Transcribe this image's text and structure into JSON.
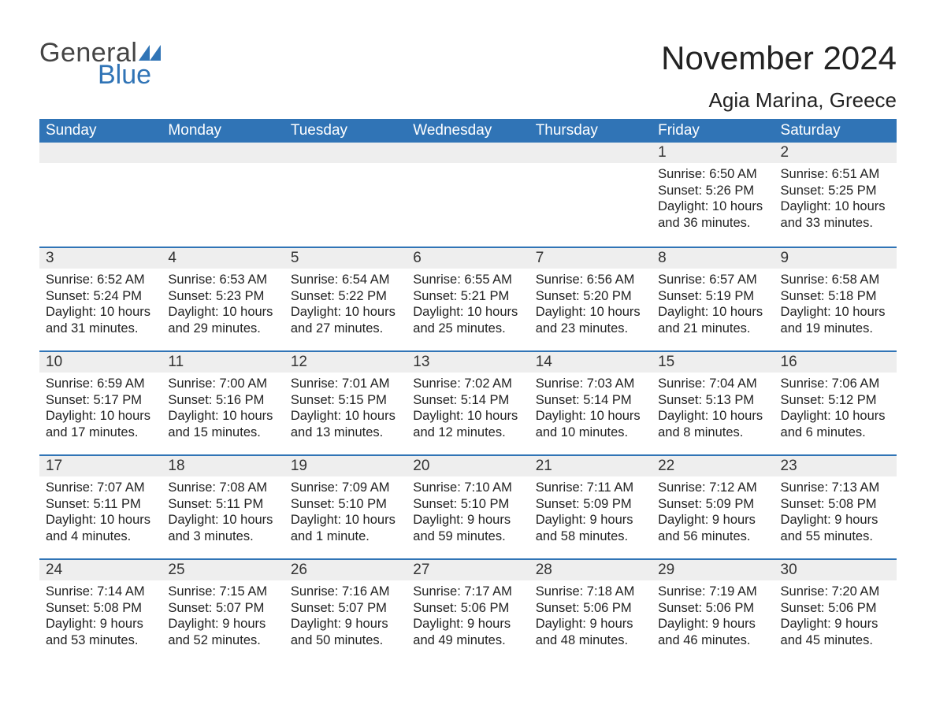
{
  "logo": {
    "text1": "General",
    "text2": "Blue",
    "mark_color": "#3074b6",
    "text1_color": "#444444"
  },
  "title": "November 2024",
  "location": "Agia Marina, Greece",
  "colors": {
    "header_bg": "#3074b6",
    "header_text": "#ffffff",
    "daybar_bg": "#eeeeee",
    "daybar_border": "#3074b6",
    "body_text": "#222222",
    "page_bg": "#ffffff"
  },
  "fonts": {
    "title_size": 42,
    "location_size": 26,
    "th_size": 19,
    "cell_size": 16.5
  },
  "weekdays": [
    "Sunday",
    "Monday",
    "Tuesday",
    "Wednesday",
    "Thursday",
    "Friday",
    "Saturday"
  ],
  "weeks": [
    [
      null,
      null,
      null,
      null,
      null,
      {
        "n": "1",
        "sunrise": "6:50 AM",
        "sunset": "5:26 PM",
        "daylight": "10 hours and 36 minutes."
      },
      {
        "n": "2",
        "sunrise": "6:51 AM",
        "sunset": "5:25 PM",
        "daylight": "10 hours and 33 minutes."
      }
    ],
    [
      {
        "n": "3",
        "sunrise": "6:52 AM",
        "sunset": "5:24 PM",
        "daylight": "10 hours and 31 minutes."
      },
      {
        "n": "4",
        "sunrise": "6:53 AM",
        "sunset": "5:23 PM",
        "daylight": "10 hours and 29 minutes."
      },
      {
        "n": "5",
        "sunrise": "6:54 AM",
        "sunset": "5:22 PM",
        "daylight": "10 hours and 27 minutes."
      },
      {
        "n": "6",
        "sunrise": "6:55 AM",
        "sunset": "5:21 PM",
        "daylight": "10 hours and 25 minutes."
      },
      {
        "n": "7",
        "sunrise": "6:56 AM",
        "sunset": "5:20 PM",
        "daylight": "10 hours and 23 minutes."
      },
      {
        "n": "8",
        "sunrise": "6:57 AM",
        "sunset": "5:19 PM",
        "daylight": "10 hours and 21 minutes."
      },
      {
        "n": "9",
        "sunrise": "6:58 AM",
        "sunset": "5:18 PM",
        "daylight": "10 hours and 19 minutes."
      }
    ],
    [
      {
        "n": "10",
        "sunrise": "6:59 AM",
        "sunset": "5:17 PM",
        "daylight": "10 hours and 17 minutes."
      },
      {
        "n": "11",
        "sunrise": "7:00 AM",
        "sunset": "5:16 PM",
        "daylight": "10 hours and 15 minutes."
      },
      {
        "n": "12",
        "sunrise": "7:01 AM",
        "sunset": "5:15 PM",
        "daylight": "10 hours and 13 minutes."
      },
      {
        "n": "13",
        "sunrise": "7:02 AM",
        "sunset": "5:14 PM",
        "daylight": "10 hours and 12 minutes."
      },
      {
        "n": "14",
        "sunrise": "7:03 AM",
        "sunset": "5:14 PM",
        "daylight": "10 hours and 10 minutes."
      },
      {
        "n": "15",
        "sunrise": "7:04 AM",
        "sunset": "5:13 PM",
        "daylight": "10 hours and 8 minutes."
      },
      {
        "n": "16",
        "sunrise": "7:06 AM",
        "sunset": "5:12 PM",
        "daylight": "10 hours and 6 minutes."
      }
    ],
    [
      {
        "n": "17",
        "sunrise": "7:07 AM",
        "sunset": "5:11 PM",
        "daylight": "10 hours and 4 minutes."
      },
      {
        "n": "18",
        "sunrise": "7:08 AM",
        "sunset": "5:11 PM",
        "daylight": "10 hours and 3 minutes."
      },
      {
        "n": "19",
        "sunrise": "7:09 AM",
        "sunset": "5:10 PM",
        "daylight": "10 hours and 1 minute."
      },
      {
        "n": "20",
        "sunrise": "7:10 AM",
        "sunset": "5:10 PM",
        "daylight": "9 hours and 59 minutes."
      },
      {
        "n": "21",
        "sunrise": "7:11 AM",
        "sunset": "5:09 PM",
        "daylight": "9 hours and 58 minutes."
      },
      {
        "n": "22",
        "sunrise": "7:12 AM",
        "sunset": "5:09 PM",
        "daylight": "9 hours and 56 minutes."
      },
      {
        "n": "23",
        "sunrise": "7:13 AM",
        "sunset": "5:08 PM",
        "daylight": "9 hours and 55 minutes."
      }
    ],
    [
      {
        "n": "24",
        "sunrise": "7:14 AM",
        "sunset": "5:08 PM",
        "daylight": "9 hours and 53 minutes."
      },
      {
        "n": "25",
        "sunrise": "7:15 AM",
        "sunset": "5:07 PM",
        "daylight": "9 hours and 52 minutes."
      },
      {
        "n": "26",
        "sunrise": "7:16 AM",
        "sunset": "5:07 PM",
        "daylight": "9 hours and 50 minutes."
      },
      {
        "n": "27",
        "sunrise": "7:17 AM",
        "sunset": "5:06 PM",
        "daylight": "9 hours and 49 minutes."
      },
      {
        "n": "28",
        "sunrise": "7:18 AM",
        "sunset": "5:06 PM",
        "daylight": "9 hours and 48 minutes."
      },
      {
        "n": "29",
        "sunrise": "7:19 AM",
        "sunset": "5:06 PM",
        "daylight": "9 hours and 46 minutes."
      },
      {
        "n": "30",
        "sunrise": "7:20 AM",
        "sunset": "5:06 PM",
        "daylight": "9 hours and 45 minutes."
      }
    ]
  ],
  "labels": {
    "sunrise": "Sunrise: ",
    "sunset": "Sunset: ",
    "daylight": "Daylight: "
  }
}
